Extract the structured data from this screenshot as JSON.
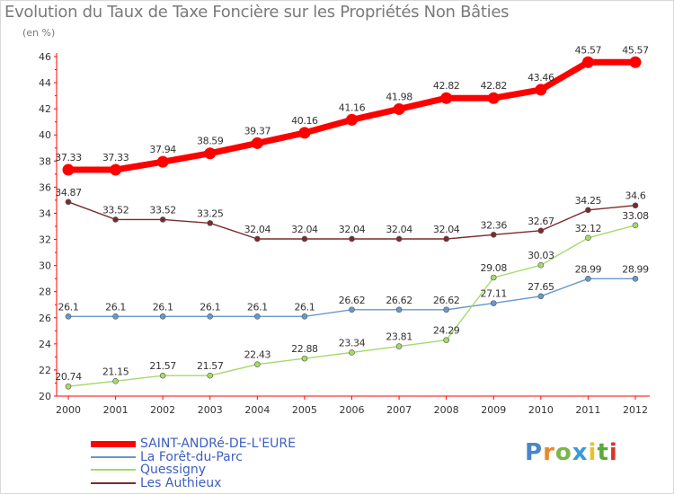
{
  "title": "Evolution du Taux de Taxe Foncière sur les Propriétés Non Bâties",
  "unit_label": "(en %)",
  "logo": {
    "text": "Proxiti",
    "letter_colors": [
      "#4a86c8",
      "#e88a2a",
      "#7ab648",
      "#3a9ad9",
      "#e8c22a",
      "#5aaa3a",
      "#d9342b"
    ]
  },
  "chart_data": {
    "type": "line",
    "categories": [
      "2000",
      "2001",
      "2002",
      "2003",
      "2004",
      "2005",
      "2006",
      "2007",
      "2008",
      "2009",
      "2010",
      "2011",
      "2012"
    ],
    "ylim": [
      20,
      46
    ],
    "yticks": [
      20,
      22,
      24,
      26,
      28,
      30,
      32,
      34,
      36,
      38,
      40,
      42,
      44,
      46
    ],
    "grid": false,
    "series": [
      {
        "name": "SAINT-ANDRé-DE-L'EURE",
        "color": "#ff0000",
        "values": [
          37.33,
          37.33,
          37.94,
          38.59,
          39.37,
          40.16,
          41.16,
          41.98,
          42.82,
          42.82,
          43.46,
          45.57,
          45.57
        ],
        "labels": [
          "37.33",
          "37.33",
          "37.94",
          "38.59",
          "39.37",
          "40.16",
          "41.16",
          "41.98",
          "42.82",
          "42.82",
          "43.46",
          "45.57",
          "45.57"
        ]
      },
      {
        "name": "La Forêt-du-Parc",
        "color": "#6699cc",
        "values": [
          26.1,
          26.1,
          26.1,
          26.1,
          26.1,
          26.1,
          26.62,
          26.62,
          26.62,
          27.11,
          27.65,
          28.99,
          28.99
        ],
        "labels": [
          "26.1",
          "26.1",
          "26.1",
          "26.1",
          "26.1",
          "26.1",
          "26.62",
          "26.62",
          "26.62",
          "27.11",
          "27.65",
          "28.99",
          "28.99"
        ]
      },
      {
        "name": "Quessigny",
        "color": "#a6d96a",
        "values": [
          20.74,
          21.15,
          21.57,
          21.57,
          22.43,
          22.88,
          23.34,
          23.81,
          24.29,
          29.08,
          30.03,
          32.12,
          33.08
        ],
        "labels": [
          "20.74",
          "21.15",
          "21.57",
          "21.57",
          "22.43",
          "22.88",
          "23.34",
          "23.81",
          "24.29",
          "29.08",
          "30.03",
          "32.12",
          "33.08"
        ]
      },
      {
        "name": "Les Authieux",
        "color": "#7b2b2b",
        "values": [
          34.87,
          33.52,
          33.52,
          33.25,
          32.04,
          32.04,
          32.04,
          32.04,
          32.04,
          32.36,
          32.67,
          34.25,
          34.6
        ],
        "labels": [
          "34.87",
          "33.52",
          "33.52",
          "33.25",
          "32.04",
          "32.04",
          "32.04",
          "32.04",
          "32.04",
          "32.36",
          "32.67",
          "34.25",
          "34.6"
        ]
      }
    ]
  }
}
